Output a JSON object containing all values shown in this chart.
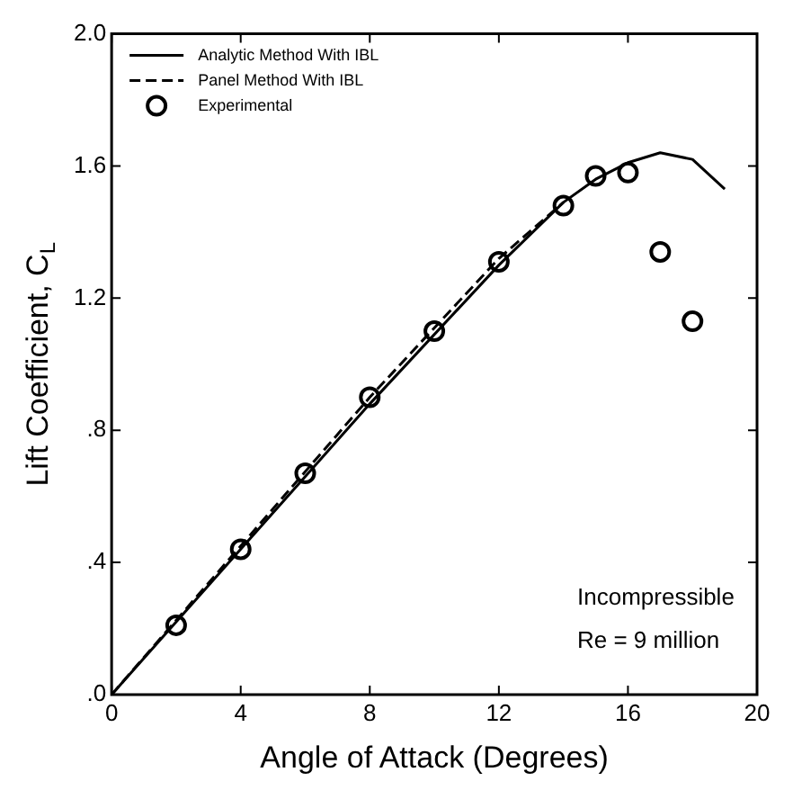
{
  "chart_data": {
    "type": "line",
    "xlabel": "Angle of Attack (Degrees)",
    "ylabel": "Lift Coefficient, C$_{L}$",
    "xlim": [
      0,
      20
    ],
    "xticks": [
      0,
      4,
      8,
      12,
      16,
      20
    ],
    "ylim": [
      0,
      2
    ],
    "yticks": [
      {
        "value": 0,
        "label": ".0"
      },
      {
        "value": 0.4,
        "label": ".4"
      },
      {
        "value": 0.8,
        "label": ".8"
      },
      {
        "value": 1.2,
        "label": "1.2"
      },
      {
        "value": 1.6,
        "label": "1.6"
      },
      {
        "value": 2,
        "label": "2.0"
      }
    ],
    "grid": false,
    "legend": "top left",
    "annotations": [
      "Incompressible",
      "Re = 9 million"
    ],
    "series": [
      {
        "name": "Analytic Method With IBL",
        "type": "line",
        "color": "#000000",
        "line_style": "solid",
        "marker": "none",
        "x": [
          0,
          8,
          12,
          14,
          15,
          16,
          17,
          18,
          19
        ],
        "values": [
          0,
          0.88,
          1.3,
          1.49,
          1.56,
          1.61,
          1.64,
          1.62,
          1.53
        ]
      },
      {
        "name": "Panel Method With IBL",
        "type": "line",
        "color": "#000000",
        "line_style": "dashed",
        "marker": "none",
        "x": [
          0,
          8,
          12,
          14
        ],
        "values": [
          0,
          0.9,
          1.32,
          1.49
        ]
      },
      {
        "name": "Experimental",
        "type": "scatter",
        "color": "#000000",
        "marker": "circle",
        "x": [
          2,
          4,
          6,
          8,
          10,
          12,
          14,
          15,
          16,
          17,
          18
        ],
        "values": [
          0.21,
          0.44,
          0.67,
          0.9,
          1.1,
          1.31,
          1.48,
          1.57,
          1.58,
          1.34,
          1.13
        ]
      }
    ]
  }
}
